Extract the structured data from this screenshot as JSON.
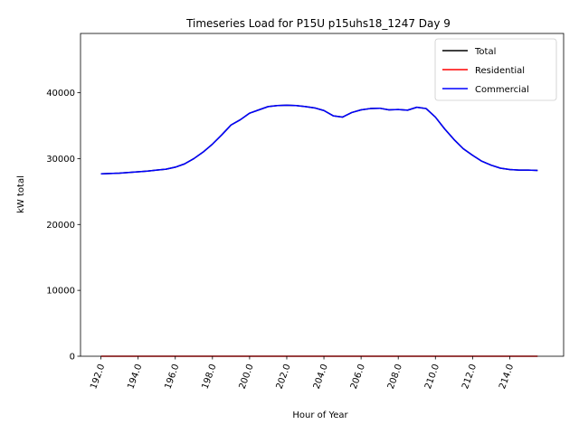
{
  "chart_data": {
    "type": "line",
    "title": "Timeseries Load for P15U p15uhs18_1247  Day 9",
    "xlabel": "Hour of Year",
    "ylabel": "kW total",
    "xlim": [
      190.9,
      216.9
    ],
    "ylim": [
      0,
      49000
    ],
    "xticks": [
      192,
      194,
      196,
      198,
      200,
      202,
      204,
      206,
      208,
      210,
      212,
      214
    ],
    "xtick_labels": [
      "192.0",
      "194.0",
      "196.0",
      "198.0",
      "200.0",
      "202.0",
      "204.0",
      "206.0",
      "208.0",
      "210.0",
      "212.0",
      "214.0"
    ],
    "yticks": [
      0,
      10000,
      20000,
      30000,
      40000
    ],
    "ytick_labels": [
      "0",
      "10000",
      "20000",
      "30000",
      "40000"
    ],
    "grid": false,
    "legend_position": "top-right",
    "x": [
      192,
      192.5,
      193,
      193.5,
      194,
      194.5,
      195,
      195.5,
      196,
      196.5,
      197,
      197.5,
      198,
      198.5,
      199,
      199.5,
      200,
      200.5,
      201,
      201.5,
      202,
      202.5,
      203,
      203.5,
      204,
      204.5,
      205,
      205.5,
      206,
      206.5,
      207,
      207.5,
      208,
      208.5,
      209,
      209.5,
      210,
      210.5,
      211,
      211.5,
      212,
      212.5,
      213,
      213.5,
      214,
      214.5,
      215,
      215.5
    ],
    "series": [
      {
        "name": "Total",
        "color": "#000000",
        "values": [
          27700,
          27750,
          27800,
          27900,
          28000,
          28100,
          28250,
          28400,
          28700,
          29200,
          30000,
          31000,
          32200,
          33600,
          35100,
          35900,
          36900,
          37400,
          37900,
          38050,
          38100,
          38050,
          37900,
          37700,
          37300,
          36500,
          36300,
          37000,
          37400,
          37600,
          37650,
          37400,
          37450,
          37350,
          37800,
          37600,
          36300,
          34500,
          32900,
          31500,
          30500,
          29600,
          29000,
          28550,
          28350,
          28250,
          28250,
          28200
        ]
      },
      {
        "name": "Residential",
        "color": "#ff0000",
        "values": [
          0,
          0,
          0,
          0,
          0,
          0,
          0,
          0,
          0,
          0,
          0,
          0,
          0,
          0,
          0,
          0,
          0,
          0,
          0,
          0,
          0,
          0,
          0,
          0,
          0,
          0,
          0,
          0,
          0,
          0,
          0,
          0,
          0,
          0,
          0,
          0,
          0,
          0,
          0,
          0,
          0,
          0,
          0,
          0,
          0,
          0,
          0,
          0
        ]
      },
      {
        "name": "Commercial",
        "color": "#0000ff",
        "values": [
          27700,
          27750,
          27800,
          27900,
          28000,
          28100,
          28250,
          28400,
          28700,
          29200,
          30000,
          31000,
          32200,
          33600,
          35100,
          35900,
          36900,
          37400,
          37900,
          38050,
          38100,
          38050,
          37900,
          37700,
          37300,
          36500,
          36300,
          37000,
          37400,
          37600,
          37650,
          37400,
          37450,
          37350,
          37800,
          37600,
          36300,
          34500,
          32900,
          31500,
          30500,
          29600,
          29000,
          28550,
          28350,
          28250,
          28250,
          28200
        ]
      }
    ]
  }
}
